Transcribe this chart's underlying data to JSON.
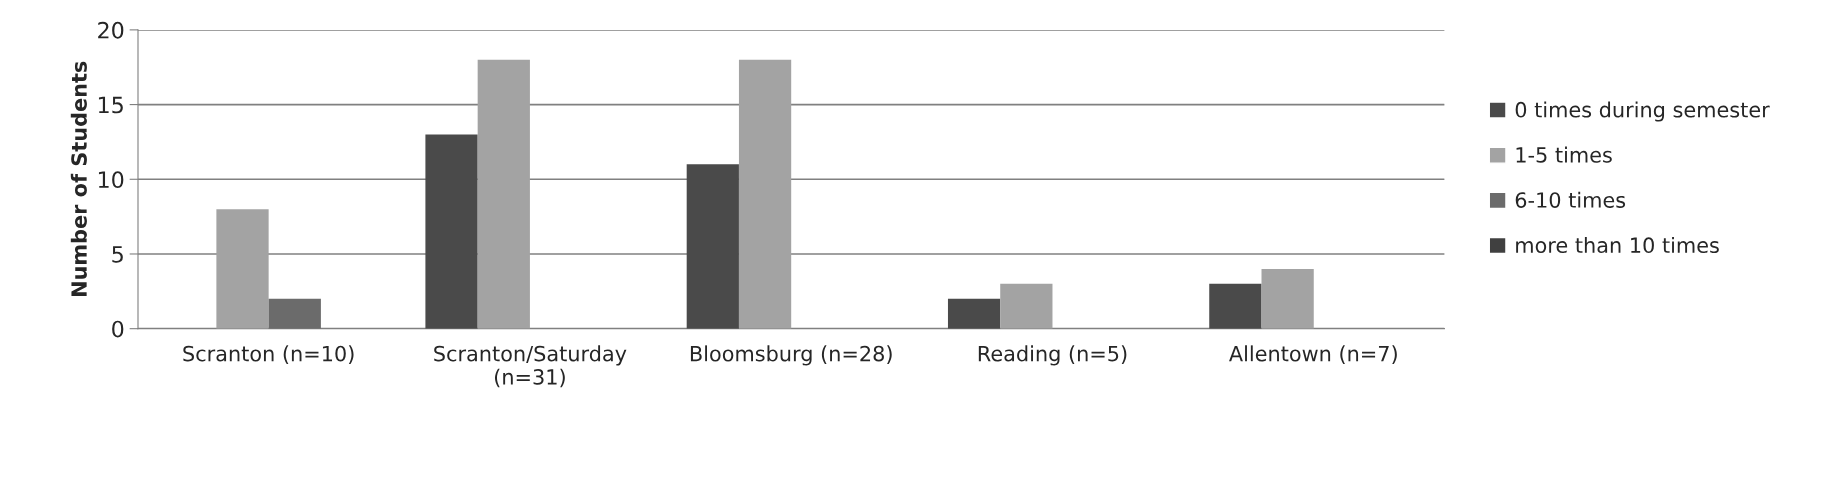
{
  "chart_data": {
    "type": "bar",
    "ylabel": "Number of Students",
    "categories": [
      "Scranton (n=10)",
      "Scranton/Saturday\n(n=31)",
      "Bloomsburg (n=28)",
      "Reading (n=5)",
      "Allentown (n=7)"
    ],
    "series": [
      {
        "name": "0 times during semester",
        "color": "#4a4a4a",
        "values": [
          0,
          13,
          11,
          2,
          3
        ]
      },
      {
        "name": "1-5 times",
        "color": "#a3a3a3",
        "values": [
          8,
          18,
          18,
          3,
          4
        ]
      },
      {
        "name": "6-10 times",
        "color": "#6b6b6b",
        "values": [
          2,
          0,
          0,
          0,
          0
        ]
      },
      {
        "name": "more than 10 times",
        "color": "#404040",
        "values": [
          0,
          0,
          0,
          0,
          0
        ]
      }
    ],
    "ylim": [
      0,
      20
    ],
    "yticks": [
      0,
      5,
      10,
      15,
      20
    ],
    "grid": "y",
    "legend": "right"
  }
}
